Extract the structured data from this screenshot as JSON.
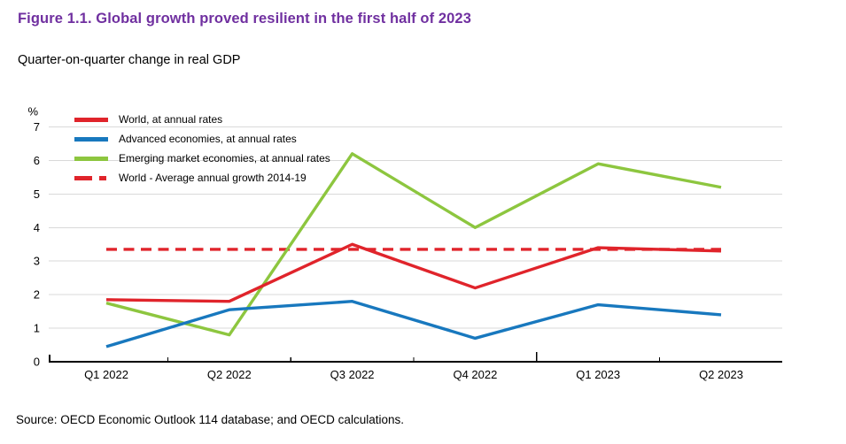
{
  "header": {
    "figure_title": "Figure 1.1. Global growth proved resilient in the first half of 2023",
    "subtitle": "Quarter-on-quarter change in real GDP"
  },
  "footer": {
    "source": "Source: OECD Economic Outlook 114 database; and OECD calculations."
  },
  "colors": {
    "title_purple": "#7030a0",
    "world_red": "#e0242b",
    "advanced_blue": "#1878be",
    "emerging_green": "#8dc63f",
    "gridline_gray": "#d9d9d9",
    "axis_black": "#000000"
  },
  "chart_data": {
    "type": "line",
    "title": "",
    "xlabel": "",
    "ylabel": "%",
    "ylim": [
      0,
      7
    ],
    "yticks": [
      0,
      1,
      2,
      3,
      4,
      5,
      6,
      7
    ],
    "grid": "horizontal",
    "legend_position": "top-left",
    "categories": [
      "Q1 2022",
      "Q2 2022",
      "Q3 2022",
      "Q4 2022",
      "Q1 2023",
      "Q2 2023"
    ],
    "year_boundary_after_index": 3,
    "series": [
      {
        "id": "world",
        "name": "World, at annual rates",
        "color": "#e0242b",
        "style": "solid",
        "values": [
          1.85,
          1.8,
          3.5,
          2.2,
          3.4,
          3.3
        ]
      },
      {
        "id": "advanced",
        "name": "Advanced economies, at annual rates",
        "color": "#1878be",
        "style": "solid",
        "values": [
          0.45,
          1.55,
          1.8,
          0.7,
          1.7,
          1.4
        ]
      },
      {
        "id": "emerging",
        "name": "Emerging market economies, at annual rates",
        "color": "#8dc63f",
        "style": "solid",
        "values": [
          1.75,
          0.8,
          6.2,
          4.0,
          5.9,
          5.2
        ]
      },
      {
        "id": "world-average",
        "name": "World - Average annual growth 2014-19",
        "color": "#e0242b",
        "style": "dashed",
        "values": [
          3.35,
          3.35,
          3.35,
          3.35,
          3.35,
          3.35
        ]
      }
    ]
  }
}
